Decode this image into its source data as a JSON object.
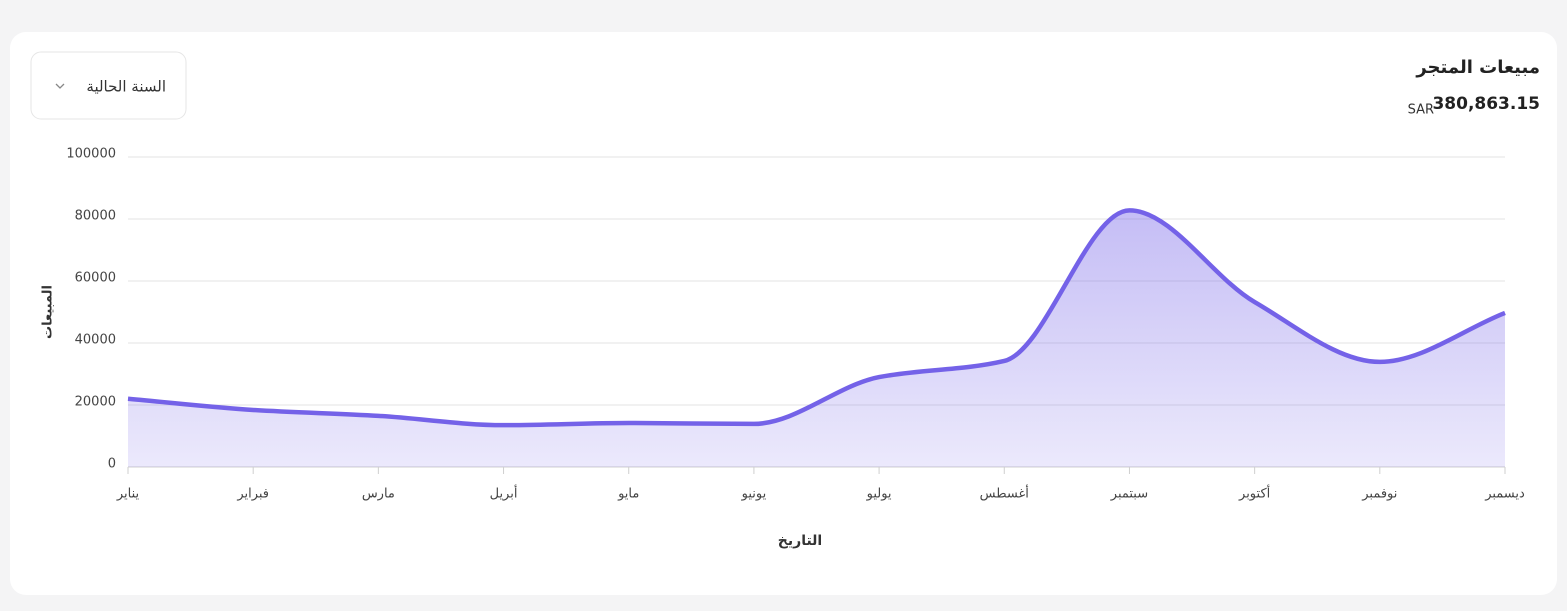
{
  "header": {
    "title": "مبيعات المتجر",
    "total": "380,863.15",
    "currency": "SAR",
    "period_select": "السنة الحالية"
  },
  "chart_data": {
    "type": "area",
    "categories": [
      "يناير",
      "فبراير",
      "مارس",
      "أبريل",
      "مايو",
      "يونيو",
      "يوليو",
      "أغسطس",
      "سبتمبر",
      "أكتوبر",
      "نوفمبر",
      "ديسمبر"
    ],
    "series": [
      {
        "name": "المبيعات",
        "color": "#7462e8",
        "values": [
          22000,
          18400,
          16500,
          13500,
          14200,
          13900,
          29000,
          34200,
          82800,
          53200,
          33900,
          49700
        ]
      }
    ],
    "x_label": "التاريخ",
    "y_label": "المبيعات",
    "ylim": [
      0,
      100000
    ],
    "yticks": [
      0,
      20000,
      40000,
      60000,
      80000,
      100000
    ],
    "grid": true,
    "smooth": true
  }
}
